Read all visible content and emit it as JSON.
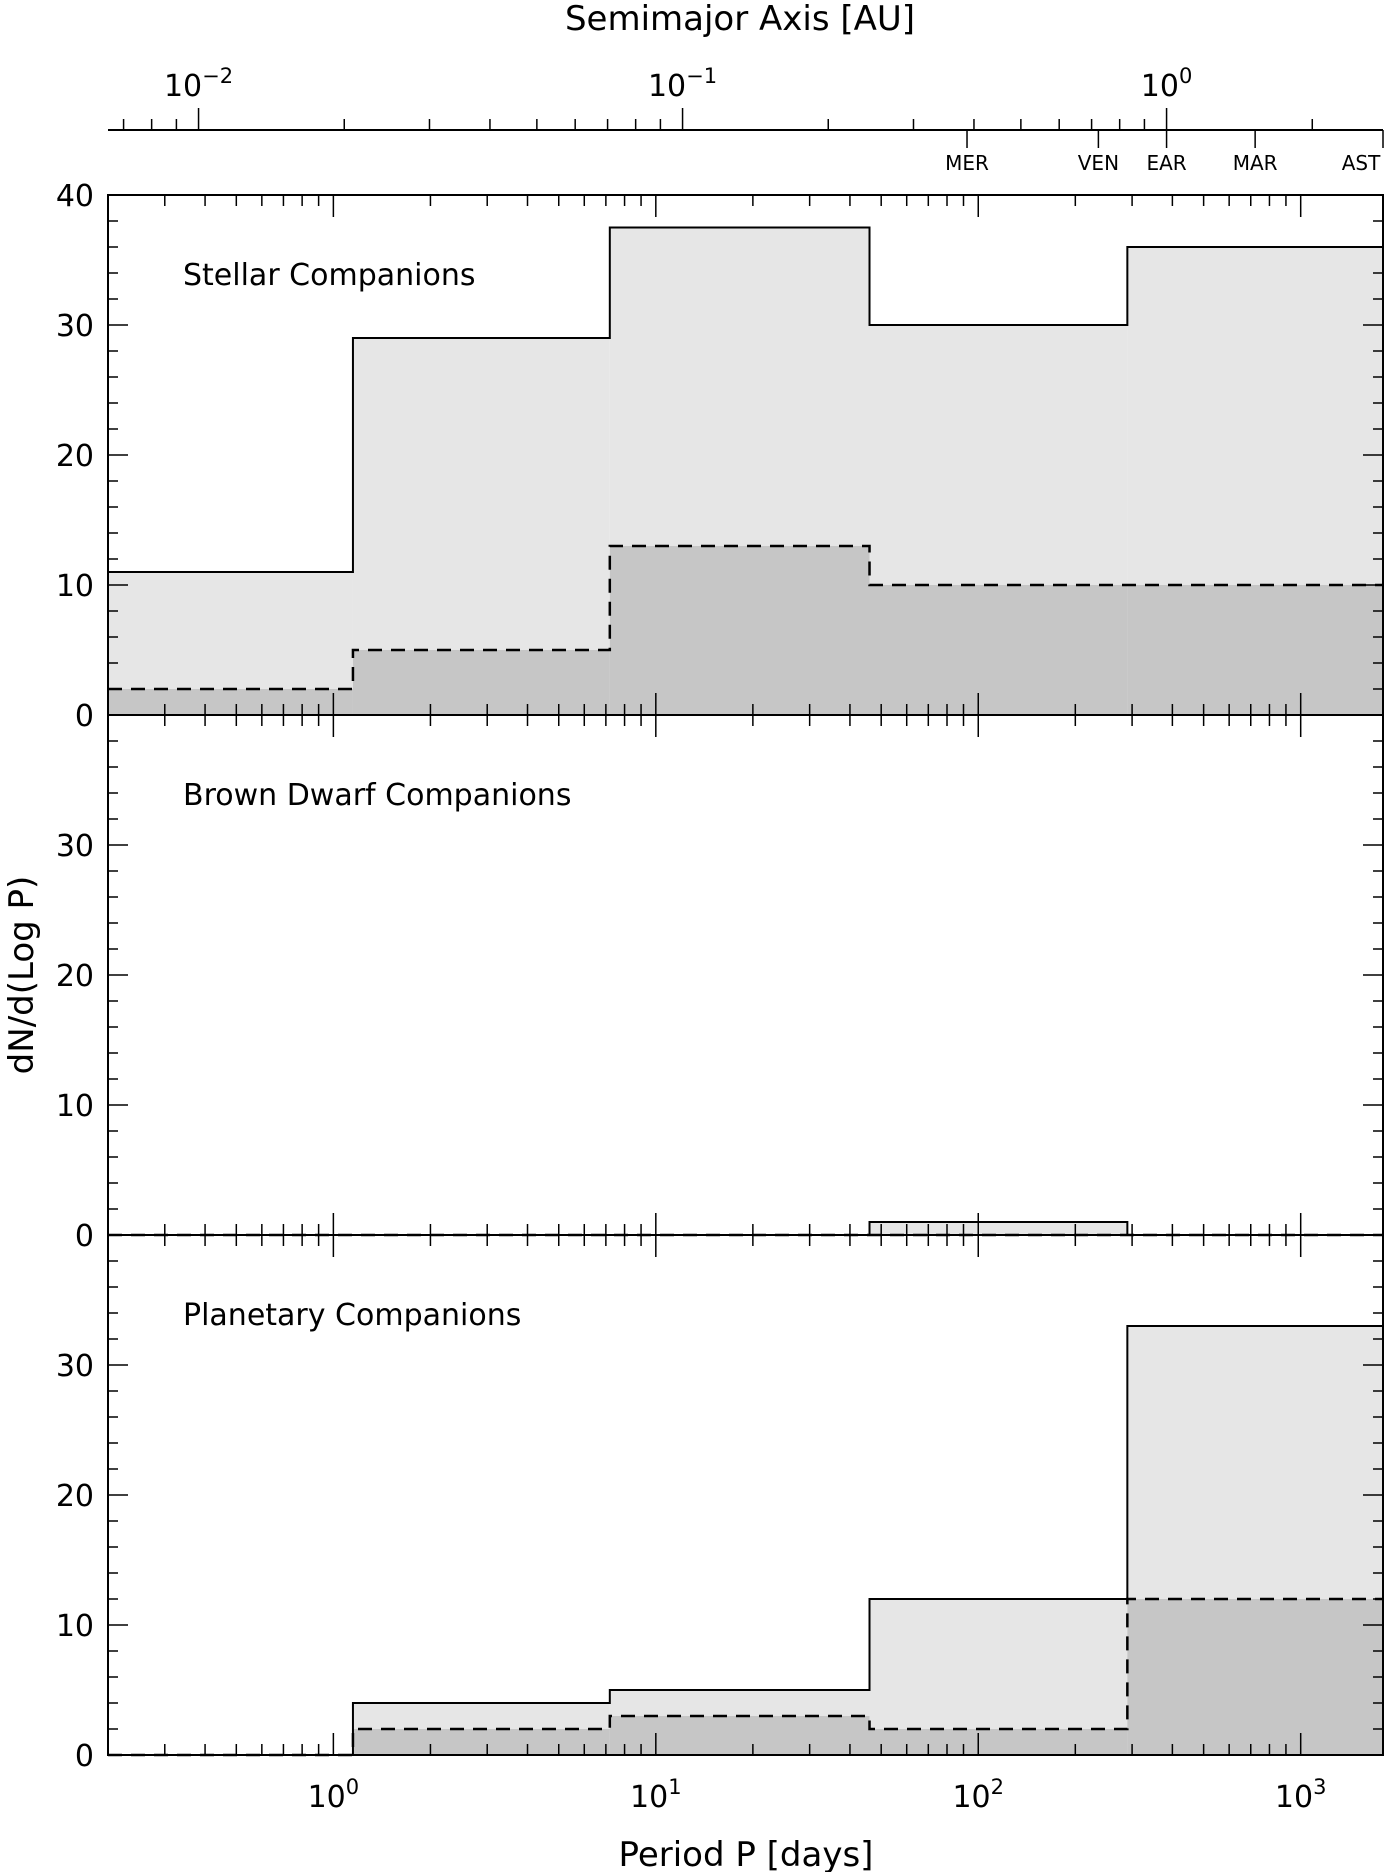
{
  "chart_data": {
    "type": "histogram",
    "top_axis": {
      "title": "Semimajor Axis [AU]",
      "scale": "log",
      "range": [
        0.0065,
        2.8
      ],
      "major_ticks": [
        {
          "value": 0.01,
          "base": "10",
          "exp": "−2"
        },
        {
          "value": 0.1,
          "base": "10",
          "exp": "−1"
        },
        {
          "value": 1,
          "base": "10",
          "exp": "0"
        }
      ],
      "planets": [
        {
          "label": "MER",
          "value": 0.387
        },
        {
          "label": "VEN",
          "value": 0.723
        },
        {
          "label": "EAR",
          "value": 1.0
        },
        {
          "label": "MAR",
          "value": 1.524
        },
        {
          "label": "AST",
          "value": 2.8
        }
      ]
    },
    "x_axis": {
      "title": "Period P [days]",
      "scale": "log",
      "range": [
        0.2,
        1800
      ],
      "major_ticks": [
        {
          "value": 1,
          "base": "10",
          "exp": "0"
        },
        {
          "value": 10,
          "base": "10",
          "exp": "1"
        },
        {
          "value": 100,
          "base": "10",
          "exp": "2"
        },
        {
          "value": 1000,
          "base": "10",
          "exp": "3"
        }
      ]
    },
    "y_axis": {
      "title": "dN/d(Log P)",
      "range": [
        0,
        40
      ]
    },
    "bin_edges": [
      0.2,
      1.15,
      7.2,
      46,
      290,
      1800
    ],
    "panels": [
      {
        "label": "Stellar Companions",
        "y_ticks": [
          0,
          10,
          20,
          30,
          40
        ],
        "solid": [
          11,
          29,
          37.5,
          30,
          36
        ],
        "dashed": [
          2,
          5,
          13,
          10,
          10
        ]
      },
      {
        "label": "Brown Dwarf Companions",
        "y_ticks": [
          0,
          10,
          20,
          30
        ],
        "solid": [
          0,
          0,
          0,
          1,
          0
        ],
        "dashed": [
          0,
          0,
          0,
          0,
          0
        ]
      },
      {
        "label": "Planetary Companions",
        "y_ticks": [
          0,
          10,
          20,
          30
        ],
        "solid": [
          0,
          4,
          5,
          12,
          33
        ],
        "dashed": [
          0,
          2,
          3,
          2,
          12
        ]
      }
    ]
  }
}
